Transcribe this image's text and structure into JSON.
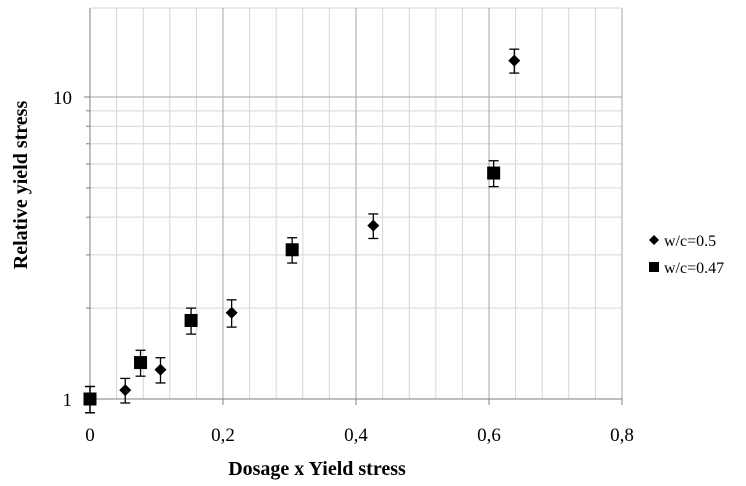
{
  "chart_data": {
    "type": "scatter",
    "xlabel": "Dosage x Yield stress",
    "ylabel": "Relative yield stress",
    "xlim": [
      0,
      0.8
    ],
    "ylim": [
      1,
      20
    ],
    "yscale": "log",
    "grid": true,
    "legend_position": "right",
    "x_ticks": [
      "0",
      "0,2",
      "0,4",
      "0,6",
      "0,8"
    ],
    "y_ticks": [
      {
        "value": 1,
        "label": "1"
      },
      {
        "value": 10,
        "label": "10"
      }
    ],
    "series": [
      {
        "name": "w/c=0.5",
        "marker": "diamond",
        "color": "#000000",
        "points": [
          {
            "x": 0.0,
            "y": 1.0,
            "err": 0.1
          },
          {
            "x": 0.053,
            "y": 1.07,
            "err": 0.1
          },
          {
            "x": 0.106,
            "y": 1.25,
            "err": 0.12
          },
          {
            "x": 0.213,
            "y": 1.93,
            "err": 0.2
          },
          {
            "x": 0.426,
            "y": 3.75,
            "err": 0.35
          },
          {
            "x": 0.638,
            "y": 13.2,
            "err": 1.2
          }
        ]
      },
      {
        "name": "w/c=0.47",
        "marker": "square",
        "color": "#000000",
        "points": [
          {
            "x": 0.0,
            "y": 1.0,
            "err": 0.1
          },
          {
            "x": 0.076,
            "y": 1.32,
            "err": 0.13
          },
          {
            "x": 0.152,
            "y": 1.82,
            "err": 0.18
          },
          {
            "x": 0.304,
            "y": 3.12,
            "err": 0.3
          },
          {
            "x": 0.607,
            "y": 5.6,
            "err": 0.55
          }
        ]
      }
    ]
  }
}
